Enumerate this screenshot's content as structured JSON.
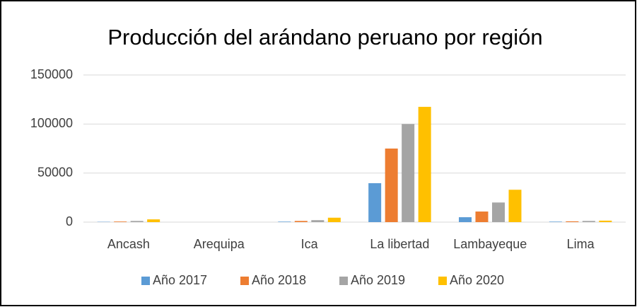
{
  "chart_data": {
    "type": "bar",
    "title": "Producción del arándano peruano por región",
    "categories": [
      "Ancash",
      "Arequipa",
      "Ica",
      "La libertad",
      "Lambayeque",
      "Lima"
    ],
    "series": [
      {
        "name": "Año 2017",
        "color": "#5b9bd5",
        "values": [
          300,
          0,
          500,
          39700,
          5000,
          500
        ]
      },
      {
        "name": "Año 2018",
        "color": "#ed7d31",
        "values": [
          600,
          0,
          1200,
          75000,
          10800,
          800
        ]
      },
      {
        "name": "Año 2019",
        "color": "#a5a5a5",
        "values": [
          1200,
          0,
          2000,
          100000,
          20000,
          1200
        ]
      },
      {
        "name": "Año 2020",
        "color": "#ffc000",
        "values": [
          2800,
          0,
          4500,
          117500,
          33000,
          1500
        ]
      }
    ],
    "ylim": [
      0,
      150000
    ],
    "yticks": [
      0,
      50000,
      100000,
      150000
    ],
    "grid": true,
    "legend": "bottom"
  }
}
